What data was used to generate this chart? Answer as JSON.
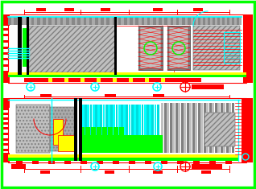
{
  "bg": "#ffffff",
  "green": "#00ff00",
  "red": "#ff0000",
  "cyan": "#00ffff",
  "yellow": "#ffff00",
  "black": "#000000",
  "white": "#ffffff",
  "gray": "#808080",
  "lgray": "#c0c0c0",
  "dgray": "#505050",
  "fig_w": 3.18,
  "fig_h": 2.35,
  "dpi": 100
}
